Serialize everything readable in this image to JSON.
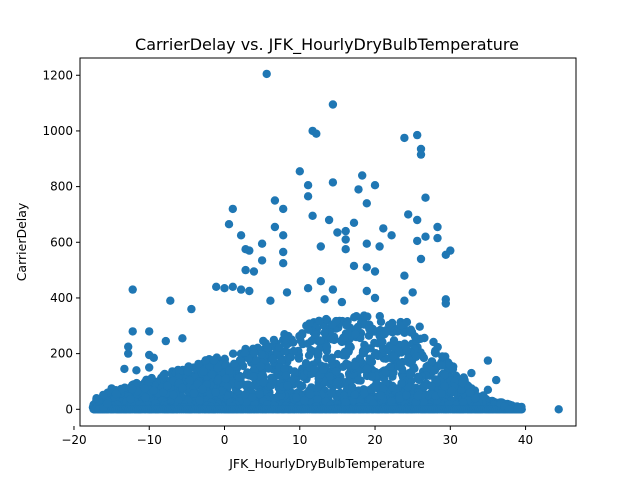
{
  "chart_data": {
    "type": "scatter",
    "title": "CarrierDelay vs. JFK_HourlyDryBulbTemperature",
    "xlabel": "JFK_HourlyDryBulbTemperature",
    "ylabel": "CarrierDelay",
    "xlim": [
      -19.2,
      46.7
    ],
    "ylim": [
      -60,
      1262
    ],
    "xticks": [
      -20,
      -10,
      0,
      10,
      20,
      30,
      40
    ],
    "yticks": [
      0,
      200,
      400,
      600,
      800,
      1000,
      1200
    ],
    "grid": false,
    "legend": "none",
    "marker_color": "#1f77b4",
    "highlight_points": [
      {
        "x": 5.6,
        "y": 1205
      },
      {
        "x": 14.4,
        "y": 1095
      },
      {
        "x": 11.7,
        "y": 1000
      },
      {
        "x": 12.2,
        "y": 990
      },
      {
        "x": 25.6,
        "y": 985
      },
      {
        "x": 23.9,
        "y": 975
      },
      {
        "x": 26.1,
        "y": 935
      },
      {
        "x": 26.1,
        "y": 915
      },
      {
        "x": 10.0,
        "y": 855
      },
      {
        "x": 18.3,
        "y": 840
      },
      {
        "x": 14.4,
        "y": 815
      },
      {
        "x": 11.1,
        "y": 805
      },
      {
        "x": 20.0,
        "y": 805
      },
      {
        "x": 17.8,
        "y": 790
      },
      {
        "x": 26.7,
        "y": 760
      },
      {
        "x": 6.7,
        "y": 750
      },
      {
        "x": 11.1,
        "y": 765
      },
      {
        "x": 18.9,
        "y": 740
      },
      {
        "x": 1.1,
        "y": 720
      },
      {
        "x": 7.8,
        "y": 720
      },
      {
        "x": 24.4,
        "y": 700
      },
      {
        "x": 11.7,
        "y": 695
      },
      {
        "x": 0.6,
        "y": 665
      },
      {
        "x": 13.9,
        "y": 680
      },
      {
        "x": 17.2,
        "y": 670
      },
      {
        "x": 6.7,
        "y": 655
      },
      {
        "x": 25.6,
        "y": 680
      },
      {
        "x": 28.3,
        "y": 655
      },
      {
        "x": 2.2,
        "y": 625
      },
      {
        "x": 7.8,
        "y": 625
      },
      {
        "x": 15.0,
        "y": 635
      },
      {
        "x": 16.1,
        "y": 640
      },
      {
        "x": 21.1,
        "y": 650
      },
      {
        "x": 22.2,
        "y": 625
      },
      {
        "x": 26.7,
        "y": 620
      },
      {
        "x": 28.3,
        "y": 615
      },
      {
        "x": 16.1,
        "y": 610
      },
      {
        "x": 12.8,
        "y": 585
      },
      {
        "x": 5.0,
        "y": 595
      },
      {
        "x": 25.6,
        "y": 605
      },
      {
        "x": 20.6,
        "y": 585
      },
      {
        "x": 30.0,
        "y": 570
      },
      {
        "x": 2.8,
        "y": 575
      },
      {
        "x": 3.3,
        "y": 570
      },
      {
        "x": 7.8,
        "y": 565
      },
      {
        "x": 16.1,
        "y": 575
      },
      {
        "x": 18.9,
        "y": 595
      },
      {
        "x": 29.4,
        "y": 555
      },
      {
        "x": 5.0,
        "y": 535
      },
      {
        "x": 7.8,
        "y": 525
      },
      {
        "x": 17.2,
        "y": 515
      },
      {
        "x": 18.9,
        "y": 510
      },
      {
        "x": 26.1,
        "y": 540
      },
      {
        "x": 2.8,
        "y": 500
      },
      {
        "x": 3.9,
        "y": 495
      },
      {
        "x": 20.0,
        "y": 495
      },
      {
        "x": 23.9,
        "y": 480
      },
      {
        "x": 12.8,
        "y": 460
      },
      {
        "x": 1.1,
        "y": 440
      },
      {
        "x": -1.1,
        "y": 440
      },
      {
        "x": 0.0,
        "y": 435
      },
      {
        "x": -12.2,
        "y": 430
      },
      {
        "x": 2.2,
        "y": 430
      },
      {
        "x": 3.3,
        "y": 425
      },
      {
        "x": 8.3,
        "y": 420
      },
      {
        "x": 11.1,
        "y": 435
      },
      {
        "x": 14.4,
        "y": 430
      },
      {
        "x": 18.9,
        "y": 425
      },
      {
        "x": 25.0,
        "y": 420
      },
      {
        "x": 23.9,
        "y": 390
      },
      {
        "x": 29.4,
        "y": 395
      },
      {
        "x": 29.4,
        "y": 380
      },
      {
        "x": -7.2,
        "y": 390
      },
      {
        "x": 6.1,
        "y": 390
      },
      {
        "x": 13.3,
        "y": 395
      },
      {
        "x": 15.6,
        "y": 385
      },
      {
        "x": 20.0,
        "y": 400
      },
      {
        "x": -4.4,
        "y": 360
      },
      {
        "x": -12.2,
        "y": 280
      },
      {
        "x": -10.0,
        "y": 280
      },
      {
        "x": -12.8,
        "y": 225
      },
      {
        "x": -12.8,
        "y": 200
      },
      {
        "x": -10.0,
        "y": 195
      },
      {
        "x": -9.4,
        "y": 185
      },
      {
        "x": -13.3,
        "y": 145
      },
      {
        "x": -11.7,
        "y": 140
      },
      {
        "x": -10.0,
        "y": 150
      },
      {
        "x": -7.8,
        "y": 245
      },
      {
        "x": -5.6,
        "y": 255
      },
      {
        "x": -15.0,
        "y": 75
      },
      {
        "x": -14.4,
        "y": 55
      },
      {
        "x": 32.8,
        "y": 130
      },
      {
        "x": 35.0,
        "y": 175
      },
      {
        "x": 36.1,
        "y": 105
      },
      {
        "x": 35.0,
        "y": 70
      },
      {
        "x": 34.4,
        "y": 50
      },
      {
        "x": 33.3,
        "y": 40
      },
      {
        "x": 36.7,
        "y": 20
      },
      {
        "x": 37.2,
        "y": 10
      },
      {
        "x": 38.3,
        "y": 0
      },
      {
        "x": 38.9,
        "y": 0
      },
      {
        "x": 37.8,
        "y": 0
      },
      {
        "x": 44.4,
        "y": 0
      },
      {
        "x": -17.2,
        "y": 0
      },
      {
        "x": -16.7,
        "y": 0
      },
      {
        "x": -16.1,
        "y": 5
      },
      {
        "x": -15.6,
        "y": 20
      }
    ]
  }
}
